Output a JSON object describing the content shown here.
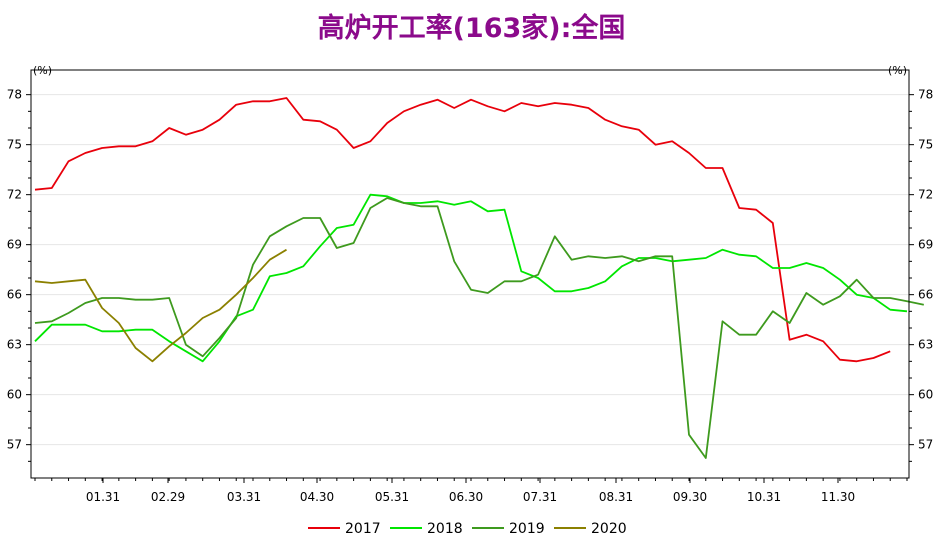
{
  "chart_data": {
    "type": "line",
    "title": "高炉开工率(163家):全国",
    "y_unit_left": "(%)",
    "y_unit_right": "(%)",
    "ylim": [
      55,
      79
    ],
    "y_ticks": [
      57,
      60,
      63,
      66,
      69,
      72,
      75,
      78
    ],
    "x_ticks": [
      "01.31",
      "02.29",
      "03.31",
      "04.30",
      "05.31",
      "06.30",
      "07.31",
      "08.31",
      "09.30",
      "10.31",
      "11.30"
    ],
    "grid": true,
    "legend_position": "bottom",
    "series": [
      {
        "name": "2017",
        "color": "#E8000B",
        "values": [
          72.3,
          72.4,
          74.0,
          74.5,
          74.8,
          74.9,
          74.9,
          75.2,
          76.0,
          75.6,
          75.9,
          76.5,
          77.4,
          77.6,
          77.6,
          77.8,
          76.5,
          76.4,
          75.9,
          74.8,
          75.2,
          76.3,
          77.0,
          77.4,
          77.7,
          77.2,
          77.7,
          77.3,
          77.0,
          77.5,
          77.3,
          77.5,
          77.4,
          77.2,
          76.5,
          76.1,
          75.9,
          75.0,
          75.2,
          74.5,
          73.6,
          73.6,
          71.2,
          71.1,
          70.3,
          63.3,
          63.6,
          63.2,
          62.1,
          62.0,
          62.2,
          62.6
        ]
      },
      {
        "name": "2018",
        "color": "#00E600",
        "values": [
          63.2,
          64.2,
          64.2,
          64.2,
          63.8,
          63.8,
          63.9,
          63.9,
          63.2,
          62.6,
          62.0,
          63.2,
          64.7,
          65.1,
          67.1,
          67.3,
          67.7,
          68.9,
          70.0,
          70.2,
          72.0,
          71.9,
          71.5,
          71.5,
          71.6,
          71.4,
          71.6,
          71.0,
          71.1,
          67.4,
          67.0,
          66.2,
          66.2,
          66.4,
          66.8,
          67.7,
          68.2,
          68.2,
          68.0,
          68.1,
          68.2,
          68.7,
          68.4,
          68.3,
          67.6,
          67.6,
          67.9,
          67.6,
          66.9,
          66.0,
          65.8,
          65.1,
          65.0
        ]
      },
      {
        "name": "2019",
        "color": "#3E9A1E",
        "values": [
          64.3,
          64.4,
          64.9,
          65.5,
          65.8,
          65.8,
          65.7,
          65.7,
          65.8,
          63.0,
          62.3,
          63.4,
          64.6,
          67.8,
          69.5,
          70.1,
          70.6,
          70.6,
          68.8,
          69.1,
          71.2,
          71.8,
          71.5,
          71.3,
          71.3,
          68.0,
          66.3,
          66.1,
          66.8,
          66.8,
          67.2,
          69.5,
          68.1,
          68.3,
          68.2,
          68.3,
          68.0,
          68.3,
          68.3,
          57.6,
          56.2,
          64.4,
          63.6,
          63.6,
          65.0,
          64.3,
          66.1,
          65.4,
          65.9,
          66.9,
          65.8,
          65.8,
          65.6,
          65.4
        ]
      },
      {
        "name": "2020",
        "color": "#8B8000",
        "values": [
          66.8,
          66.7,
          66.8,
          66.9,
          65.2,
          64.3,
          62.8,
          62.0,
          62.9,
          63.7,
          64.6,
          65.1,
          66.0,
          67.0,
          68.1,
          68.7
        ]
      }
    ]
  }
}
